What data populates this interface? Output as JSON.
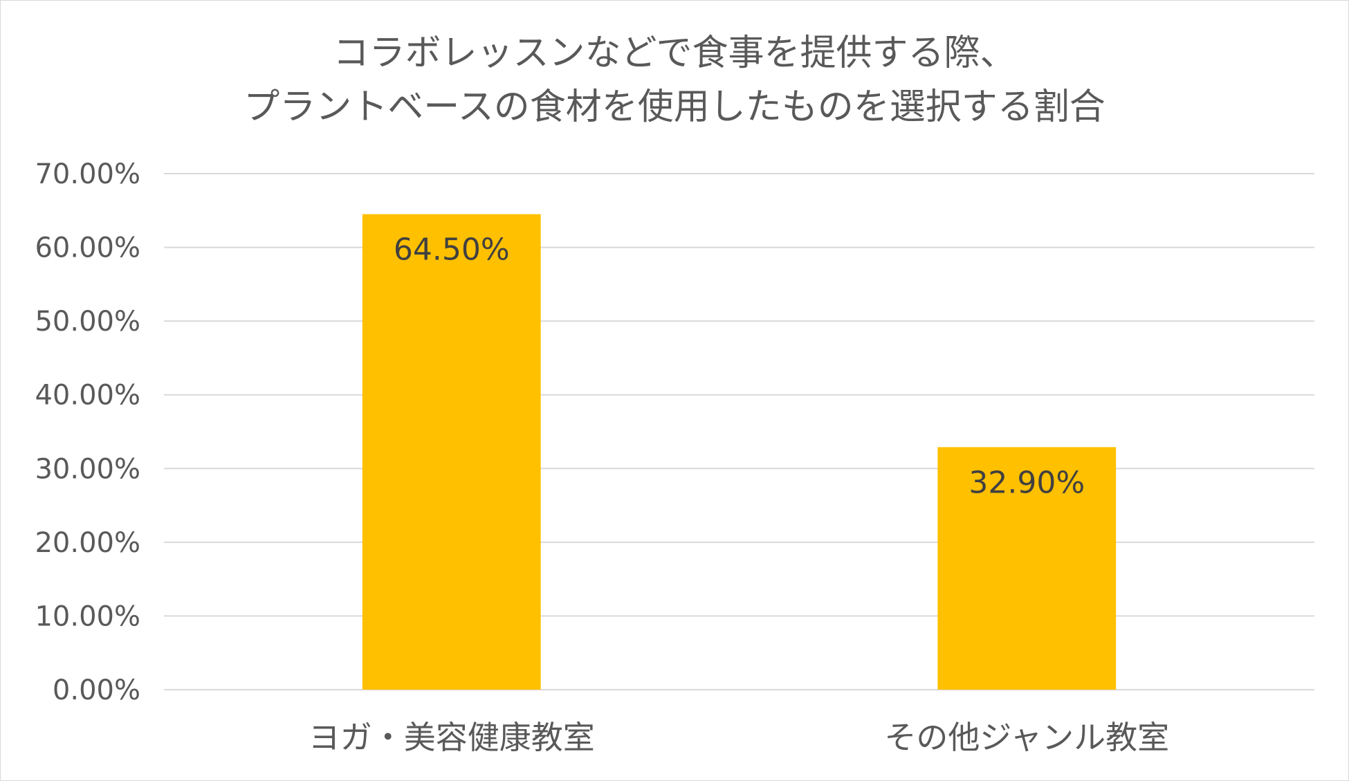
{
  "chart_data": {
    "type": "bar",
    "title_lines": [
      "コラボレッスンなどで食事を提供する際、",
      "プラントベースの食材を使用したものを選択する割合"
    ],
    "categories": [
      "ヨガ・美容健康教室",
      "その他ジャンル教室"
    ],
    "values": [
      64.5,
      32.9
    ],
    "data_labels": [
      "64.50%",
      "32.90%"
    ],
    "ylim": [
      0,
      70
    ],
    "yticks": [
      0,
      10,
      20,
      30,
      40,
      50,
      60,
      70
    ],
    "ytick_labels": [
      "0.00%",
      "10.00%",
      "20.00%",
      "30.00%",
      "40.00%",
      "50.00%",
      "60.00%",
      "70.00%"
    ],
    "xlabel": "",
    "ylabel": "",
    "grid": true,
    "legend": "none",
    "colors": {
      "bar": "#FFC000",
      "grid": "#d9d9d9",
      "text": "#595959"
    }
  }
}
